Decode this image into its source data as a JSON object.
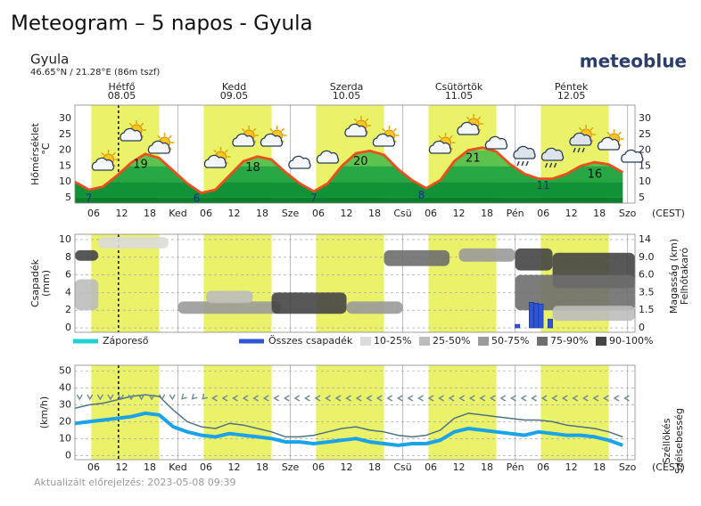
{
  "page": {
    "title": "Meteogram – 5 napos - Gyula",
    "location": "Gyula",
    "coordinates": "46.65°N / 21.28°E (86m tszf)",
    "brand": "meteoblue",
    "updated": "Aktualizált előrejelzés: 2023-05-08 09:39"
  },
  "x_axis": {
    "xlim": [
      2,
      121.6
    ],
    "xticks": [
      {
        "value": 6,
        "label": "06"
      },
      12,
      18,
      {
        "value": 24,
        "label": "Ked"
      },
      {
        "value": 30,
        "label": "06"
      },
      {
        "value": 36,
        "label": "12"
      },
      {
        "value": 42,
        "label": "18"
      },
      {
        "value": 48,
        "label": "Sze"
      },
      {
        "value": 54,
        "label": "06"
      },
      {
        "value": 60,
        "label": "12"
      },
      {
        "value": 66,
        "label": "18"
      },
      {
        "value": 72,
        "label": "Csü"
      },
      {
        "value": 78,
        "label": "06"
      },
      {
        "value": 84,
        "label": "12"
      },
      {
        "value": 90,
        "label": "18"
      },
      {
        "value": 96,
        "label": "Pén"
      },
      {
        "value": 102,
        "label": "06"
      },
      {
        "value": 108,
        "label": "12"
      },
      {
        "value": 114,
        "label": "18"
      },
      {
        "value": 120,
        "label": "Szo"
      }
    ],
    "timezone": "(CEST)",
    "days": [
      {
        "name": "Hétfő",
        "date": "08.05"
      },
      {
        "name": "Kedd",
        "date": "09.05"
      },
      {
        "name": "Szerda",
        "date": "10.05"
      },
      {
        "name": "Csütörtök",
        "date": "11.05"
      },
      {
        "name": "Péntek",
        "date": "12.05"
      }
    ]
  },
  "chart_data": [
    {
      "type": "line",
      "ylabel": "Hőmérséklet",
      "yunit": "°C",
      "color": "#e8501e",
      "fill_colors": [
        "#0b7f2c",
        "#119236",
        "#27a845",
        "#5ec24f",
        "#b9e348",
        "#d8ef6a"
      ],
      "ylim": [
        3.3,
        34.2
      ],
      "yticks": [
        5,
        10,
        15,
        20,
        25,
        30
      ],
      "x": [
        2,
        5,
        8,
        11,
        14,
        17,
        20,
        23,
        26,
        29,
        32,
        35,
        38,
        41,
        44,
        47,
        50,
        53,
        56,
        59,
        62,
        65,
        68,
        71,
        74,
        77,
        80,
        83,
        86,
        89,
        92,
        95,
        98,
        101,
        104,
        107,
        110,
        113,
        116,
        119
      ],
      "values": [
        10,
        7.5,
        8.5,
        12,
        16,
        18.8,
        17.5,
        13.5,
        9.5,
        6.5,
        7.5,
        12,
        16.5,
        18,
        17,
        13,
        9.5,
        7,
        9.5,
        15,
        19,
        19.8,
        18.5,
        14,
        10.5,
        8,
        10.5,
        16.5,
        20,
        20.8,
        19.5,
        15.5,
        12.5,
        11,
        11,
        12.5,
        15,
        16.2,
        15.5,
        13
      ],
      "extremes": {
        "x": [
          5,
          16,
          28,
          40,
          53,
          63,
          76,
          87,
          102,
          113
        ],
        "values": [
          7,
          19,
          6,
          18,
          7,
          20,
          8,
          21,
          11,
          16
        ]
      }
    },
    {
      "type": "bar",
      "ylabel": "Csapadék",
      "yunit": "(mm)",
      "y2label": "Magasság (km)",
      "y2label2": "Felhőtakaró",
      "ylim": [
        -0.5,
        10.6
      ],
      "yticks": [
        0,
        2,
        4,
        6,
        8,
        10
      ],
      "y2ticks": [
        0,
        1.5,
        3.5,
        {
          "value": 6,
          "label": "6.0"
        },
        {
          "value": 9,
          "label": "9.0"
        },
        14
      ],
      "series": [
        {
          "name": "Záporeső",
          "color": "#1fd2d2",
          "x": [
            96,
            99,
            100,
            101,
            103
          ],
          "values": [
            0,
            0,
            0,
            0,
            0
          ]
        },
        {
          "name": "Összes csapadék",
          "color": "#2f54d6",
          "x": [
            96,
            99,
            100,
            101,
            103
          ],
          "values": [
            0.4,
            2.9,
            2.8,
            2.7,
            1.0
          ]
        }
      ],
      "cloud_cover": {
        "classes": [
          {
            "label": "10-25%",
            "color": "#dcdcdc"
          },
          {
            "label": "25-50%",
            "color": "#bdbdbd"
          },
          {
            "label": "50-75%",
            "color": "#9a9a9a"
          },
          {
            "label": "75-90%",
            "color": "#6e6e6e"
          },
          {
            "label": "90-100%",
            "color": "#454545"
          }
        ],
        "x0": [
          2,
          2,
          7,
          24,
          44,
          60,
          68,
          84,
          96,
          104,
          96,
          104,
          30
        ],
        "x1": [
          7,
          7,
          22,
          46,
          60,
          72,
          82,
          96,
          104,
          121.6,
          121.6,
          121.6,
          40
        ],
        "y0": [
          7.6,
          2,
          9,
          1.6,
          1.6,
          1.6,
          7,
          7.5,
          6.5,
          4.5,
          2,
          0.8,
          2.8
        ],
        "y1": [
          8.8,
          5.5,
          10.3,
          3,
          4,
          3,
          8.8,
          9,
          9,
          8.5,
          6,
          2.5,
          4.2
        ],
        "cover": [
          4,
          1,
          0,
          2,
          4,
          2,
          3,
          2,
          4,
          4,
          3,
          1,
          1
        ]
      }
    },
    {
      "type": "line",
      "ylabel": "(km/h)",
      "ylim": [
        -2.5,
        53.5
      ],
      "yticks": [
        0,
        10,
        20,
        30,
        40,
        50
      ],
      "x": [
        2,
        5,
        8,
        11,
        14,
        17,
        20,
        23,
        26,
        29,
        32,
        35,
        38,
        41,
        44,
        47,
        50,
        53,
        56,
        59,
        62,
        65,
        68,
        71,
        74,
        77,
        80,
        83,
        86,
        89,
        92,
        95,
        98,
        101,
        104,
        107,
        110,
        113,
        116,
        119
      ],
      "series": [
        {
          "name": "Szélsebesség",
          "color": "#1aa3e8",
          "values": [
            19,
            20,
            21,
            22,
            23,
            25,
            24,
            17,
            14,
            12,
            11,
            13,
            12,
            11,
            10,
            8,
            8,
            7,
            8,
            9,
            10,
            8,
            7,
            6,
            7,
            7,
            9,
            14,
            16,
            15,
            14,
            13,
            12,
            14,
            13,
            12,
            12,
            11,
            9,
            6
          ]
        },
        {
          "name": "Széllökés",
          "color": "#4d7383",
          "values": [
            28,
            30,
            31,
            33,
            35,
            36,
            35,
            27,
            20,
            17,
            16,
            19,
            18,
            16,
            14,
            11,
            11,
            12,
            14,
            16,
            17,
            15,
            14,
            12,
            11,
            12,
            15,
            22,
            25,
            24,
            23,
            22,
            21,
            21,
            20,
            18,
            17,
            16,
            14,
            11
          ]
        }
      ]
    }
  ]
}
